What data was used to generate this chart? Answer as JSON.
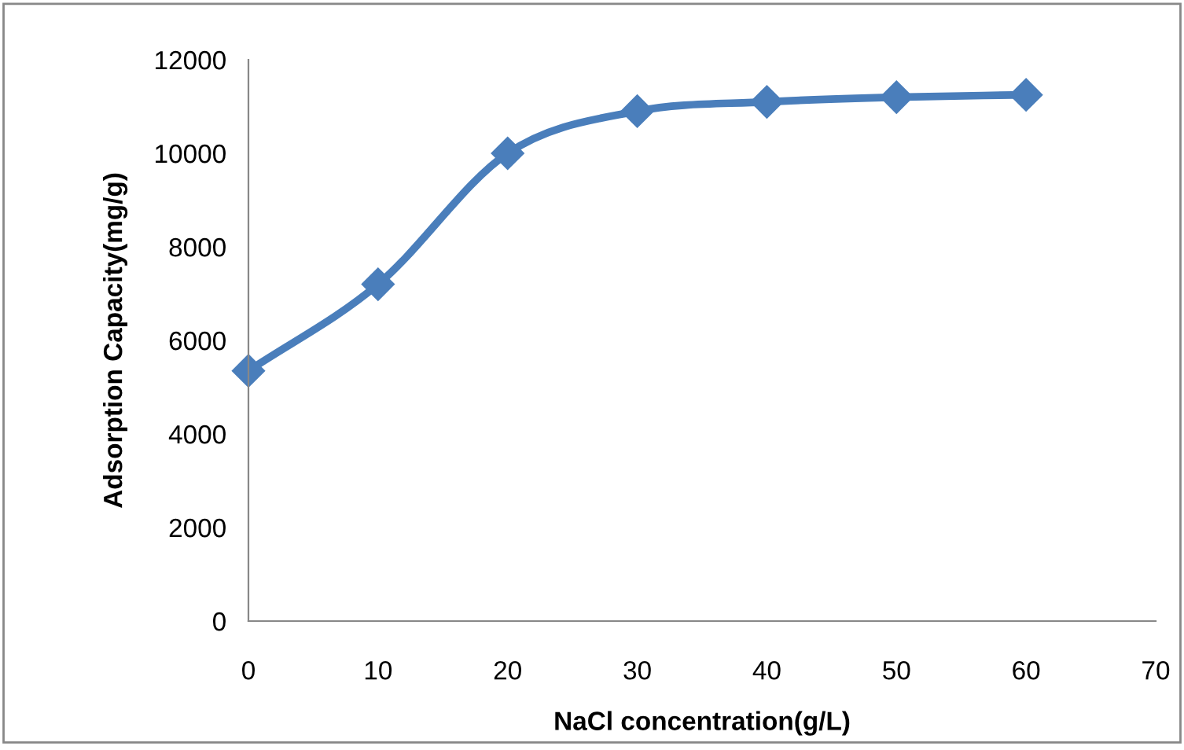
{
  "chart_data": {
    "type": "line",
    "xlabel": "NaCl concentration(g/L)",
    "ylabel": "Adsorption Capacity(mg/g)",
    "x": [
      0,
      10,
      20,
      30,
      40,
      50,
      60
    ],
    "series": [
      {
        "color": "#4a7ebb",
        "values": [
          5350,
          7200,
          10000,
          10900,
          11100,
          11200,
          11250
        ]
      }
    ],
    "xlim": [
      0,
      70
    ],
    "xticks": [
      0,
      10,
      20,
      30,
      40,
      50,
      60,
      70
    ],
    "ylim": [
      0,
      12000
    ],
    "yticks": [
      0,
      2000,
      4000,
      6000,
      8000,
      10000,
      12000
    ],
    "grid": false,
    "marker": "diamond",
    "line_style": "solid"
  }
}
